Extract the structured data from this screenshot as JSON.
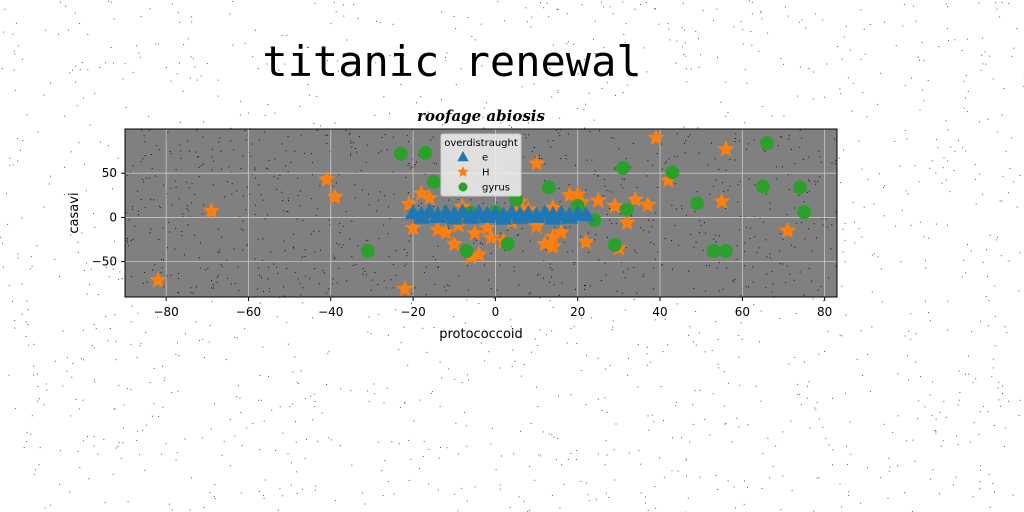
{
  "page_title": "titanic renewal",
  "chart_data": {
    "type": "scatter",
    "title": "roofage abiosis",
    "xlabel": "protococcoid",
    "ylabel": "casavi",
    "xlim": [
      -90,
      83
    ],
    "ylim": [
      -90,
      100
    ],
    "xticks": [
      -80,
      -60,
      -40,
      -20,
      0,
      20,
      40,
      60,
      80
    ],
    "yticks": [
      -50,
      0,
      50
    ],
    "grid": true,
    "plot_background": "#808080",
    "legend": {
      "title": "overdistraught",
      "position": "upper-center"
    },
    "series": [
      {
        "name": "e",
        "marker": "triangle",
        "color": "#1f77b4",
        "x": [
          -20,
          -18,
          -16,
          -14,
          -12,
          -10,
          -8,
          -6,
          -4,
          -2,
          0,
          2,
          4,
          6,
          8,
          10,
          12,
          14,
          16,
          18,
          20,
          22,
          -18,
          -14,
          -10,
          -6,
          -2,
          2,
          6,
          10,
          14,
          18
        ],
        "y": [
          5,
          3,
          6,
          2,
          5,
          3,
          6,
          2,
          5,
          3,
          4,
          2,
          5,
          3,
          4,
          2,
          5,
          3,
          4,
          2,
          4,
          3,
          0,
          1,
          -1,
          0,
          1,
          -1,
          0,
          1,
          -1,
          0
        ]
      },
      {
        "name": "H",
        "marker": "star",
        "color": "#ff7f0e",
        "x": [
          -82,
          -69,
          -41,
          -39,
          -22,
          -21,
          -20,
          -18,
          -16,
          -14,
          -12,
          -10,
          -8,
          -6,
          -4,
          -2,
          0,
          2,
          4,
          6,
          8,
          10,
          12,
          14,
          16,
          18,
          20,
          22,
          25,
          30,
          32,
          37,
          39,
          42,
          55,
          56,
          71,
          -9,
          -1,
          10,
          14,
          21,
          29,
          34,
          -5,
          5,
          14
        ],
        "y": [
          -71,
          7,
          43,
          23,
          -81,
          15,
          -12,
          27,
          22,
          -14,
          -17,
          -30,
          12,
          -45,
          -42,
          -12,
          5,
          -27,
          -5,
          18,
          9,
          61,
          -30,
          11,
          -17,
          25,
          26,
          -28,
          19,
          -35,
          -6,
          14,
          90,
          42,
          18,
          77,
          -15,
          -9,
          -23,
          -10,
          -22,
          17,
          13,
          20,
          -18,
          7,
          -33
        ]
      },
      {
        "name": "gyrus",
        "marker": "circle",
        "color": "#2ca02c",
        "x": [
          -31,
          -23,
          -17,
          -15,
          -7,
          3,
          5,
          13,
          20,
          24,
          29,
          31,
          32,
          43,
          49,
          53,
          56,
          65,
          66,
          74,
          75,
          -6,
          0
        ],
        "y": [
          -38,
          72,
          73,
          40,
          -38,
          -30,
          20,
          34,
          13,
          -3,
          -31,
          56,
          9,
          51,
          16,
          -38,
          -38,
          35,
          84,
          34,
          6,
          5,
          6
        ]
      }
    ]
  }
}
